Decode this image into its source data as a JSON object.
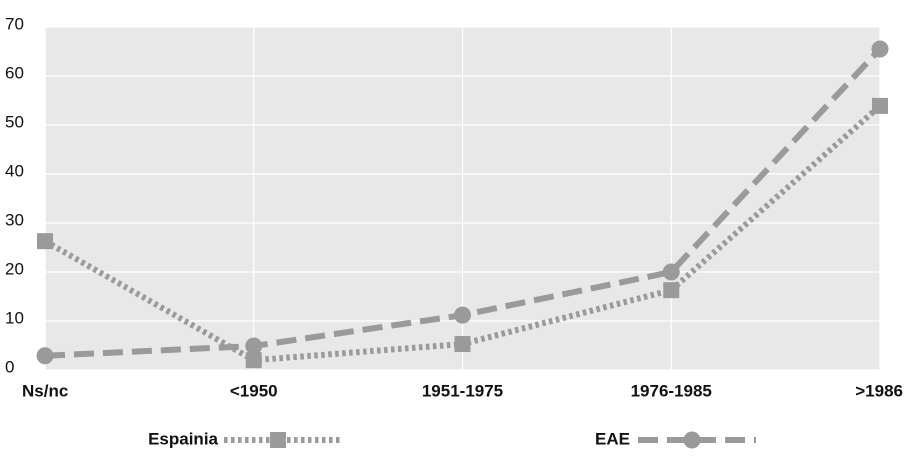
{
  "chart_data": {
    "type": "line",
    "categories": [
      "Ns/nc",
      "<1950",
      "1951-1975",
      "1976-1985",
      ">1986"
    ],
    "series": [
      {
        "name": "Espainia",
        "color": "#9a9a9a",
        "style": "dotted",
        "marker": "square",
        "values": [
          26.3,
          2,
          5.3,
          16.3,
          53.9
        ]
      },
      {
        "name": "EAE",
        "color": "#9a9a9a",
        "style": "dashed",
        "marker": "circle",
        "values": [
          2.9,
          4.9,
          11.2,
          20,
          65.5
        ]
      }
    ],
    "ylim": [
      0,
      70
    ],
    "yticks": [
      0,
      10,
      20,
      30,
      40,
      50,
      60,
      70
    ],
    "grid": true
  }
}
